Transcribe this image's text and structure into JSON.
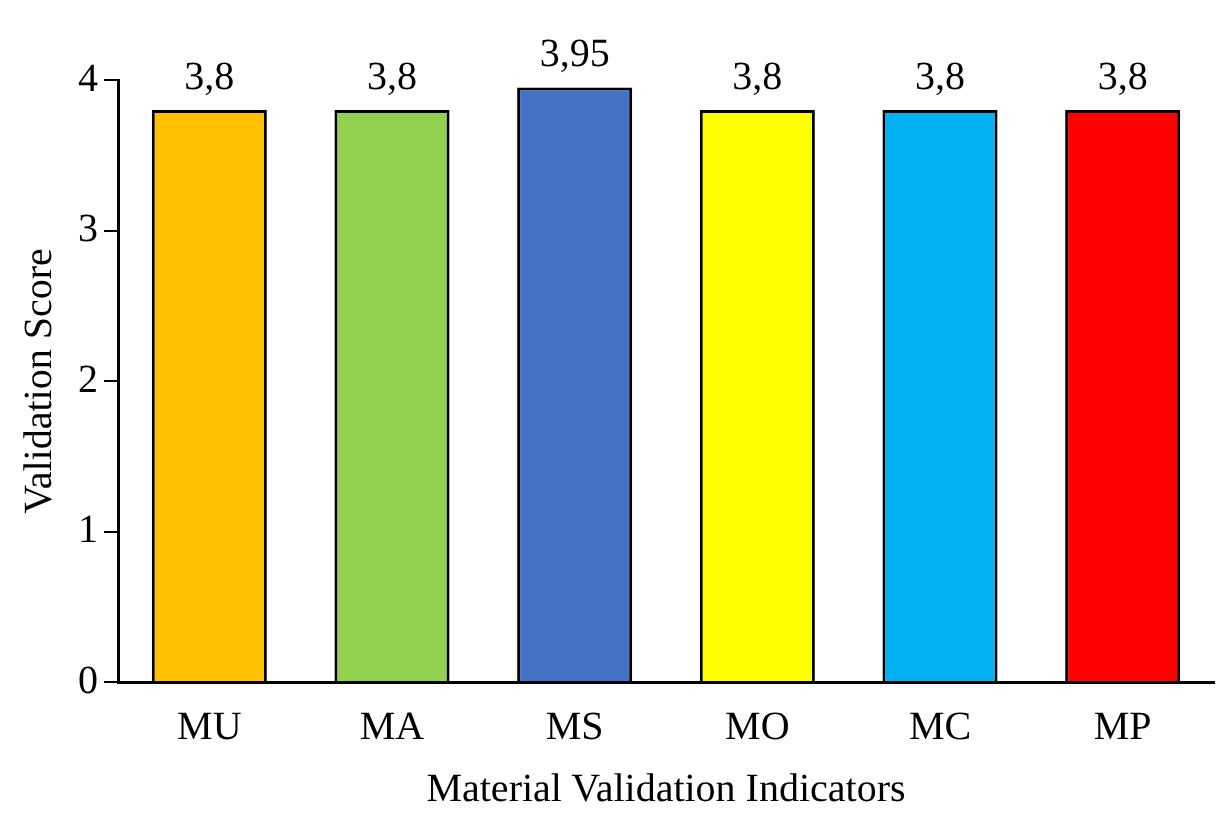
{
  "chart_data": {
    "type": "bar",
    "xlabel": "Material Validation Indicators",
    "ylabel": "Validation Score",
    "categories": [
      "MU",
      "MA",
      "MS",
      "MO",
      "MC",
      "MP"
    ],
    "values": [
      3.8,
      3.8,
      3.95,
      3.8,
      3.8,
      3.8
    ],
    "colors": [
      "#ffc000",
      "#92d050",
      "#4472c4",
      "#ffff00",
      "#00b0f0",
      "#ff0000"
    ],
    "value_labels": [
      "3,8",
      "3,8",
      "3,95",
      "3,8",
      "3,8",
      "3,8"
    ],
    "ylim": [
      0,
      4
    ],
    "yticks": [
      0,
      1,
      2,
      3,
      4
    ],
    "grid": false,
    "legend": false
  }
}
